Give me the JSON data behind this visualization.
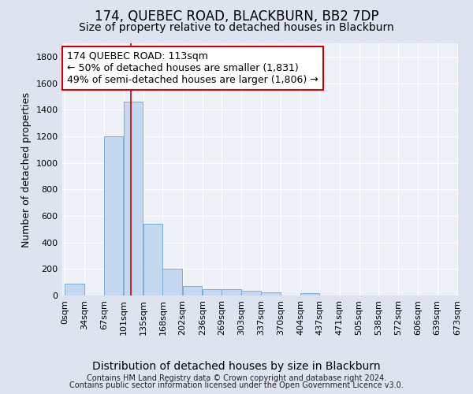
{
  "title": "174, QUEBEC ROAD, BLACKBURN, BB2 7DP",
  "subtitle": "Size of property relative to detached houses in Blackburn",
  "xlabel": "Distribution of detached houses by size in Blackburn",
  "ylabel": "Number of detached properties",
  "footnote1": "Contains HM Land Registry data © Crown copyright and database right 2024.",
  "footnote2": "Contains public sector information licensed under the Open Government Licence v3.0.",
  "annotation_line1": "174 QUEBEC ROAD: 113sqm",
  "annotation_line2": "← 50% of detached houses are smaller (1,831)",
  "annotation_line3": "49% of semi-detached houses are larger (1,806) →",
  "property_size": 113,
  "bin_starts": [
    0,
    34,
    67,
    101,
    135,
    168,
    202,
    236,
    269,
    303,
    337,
    370,
    404,
    437,
    471,
    505,
    538,
    572,
    606,
    639
  ],
  "bin_labels": [
    "0sqm",
    "34sqm",
    "67sqm",
    "101sqm",
    "135sqm",
    "168sqm",
    "202sqm",
    "236sqm",
    "269sqm",
    "303sqm",
    "337sqm",
    "370sqm",
    "404sqm",
    "437sqm",
    "471sqm",
    "505sqm",
    "538sqm",
    "572sqm",
    "606sqm",
    "639sqm",
    "673sqm"
  ],
  "bar_heights": [
    90,
    0,
    1200,
    1460,
    540,
    200,
    70,
    50,
    50,
    35,
    25,
    0,
    20,
    0,
    0,
    0,
    0,
    0,
    0,
    0
  ],
  "bar_color": "#c5d8f0",
  "bar_edge_color": "#7aaed6",
  "vline_color": "#cc0000",
  "vline_x": 113,
  "annotation_box_color": "#cc0000",
  "ylim": [
    0,
    1900
  ],
  "yticks": [
    0,
    200,
    400,
    600,
    800,
    1000,
    1200,
    1400,
    1600,
    1800
  ],
  "background_color": "#dde3ef",
  "plot_bg_color": "#eef1f8",
  "grid_color": "#ffffff",
  "title_fontsize": 12,
  "subtitle_fontsize": 10,
  "ylabel_fontsize": 9,
  "xlabel_fontsize": 10,
  "tick_fontsize": 8,
  "footnote_fontsize": 7,
  "annotation_fontsize": 9
}
